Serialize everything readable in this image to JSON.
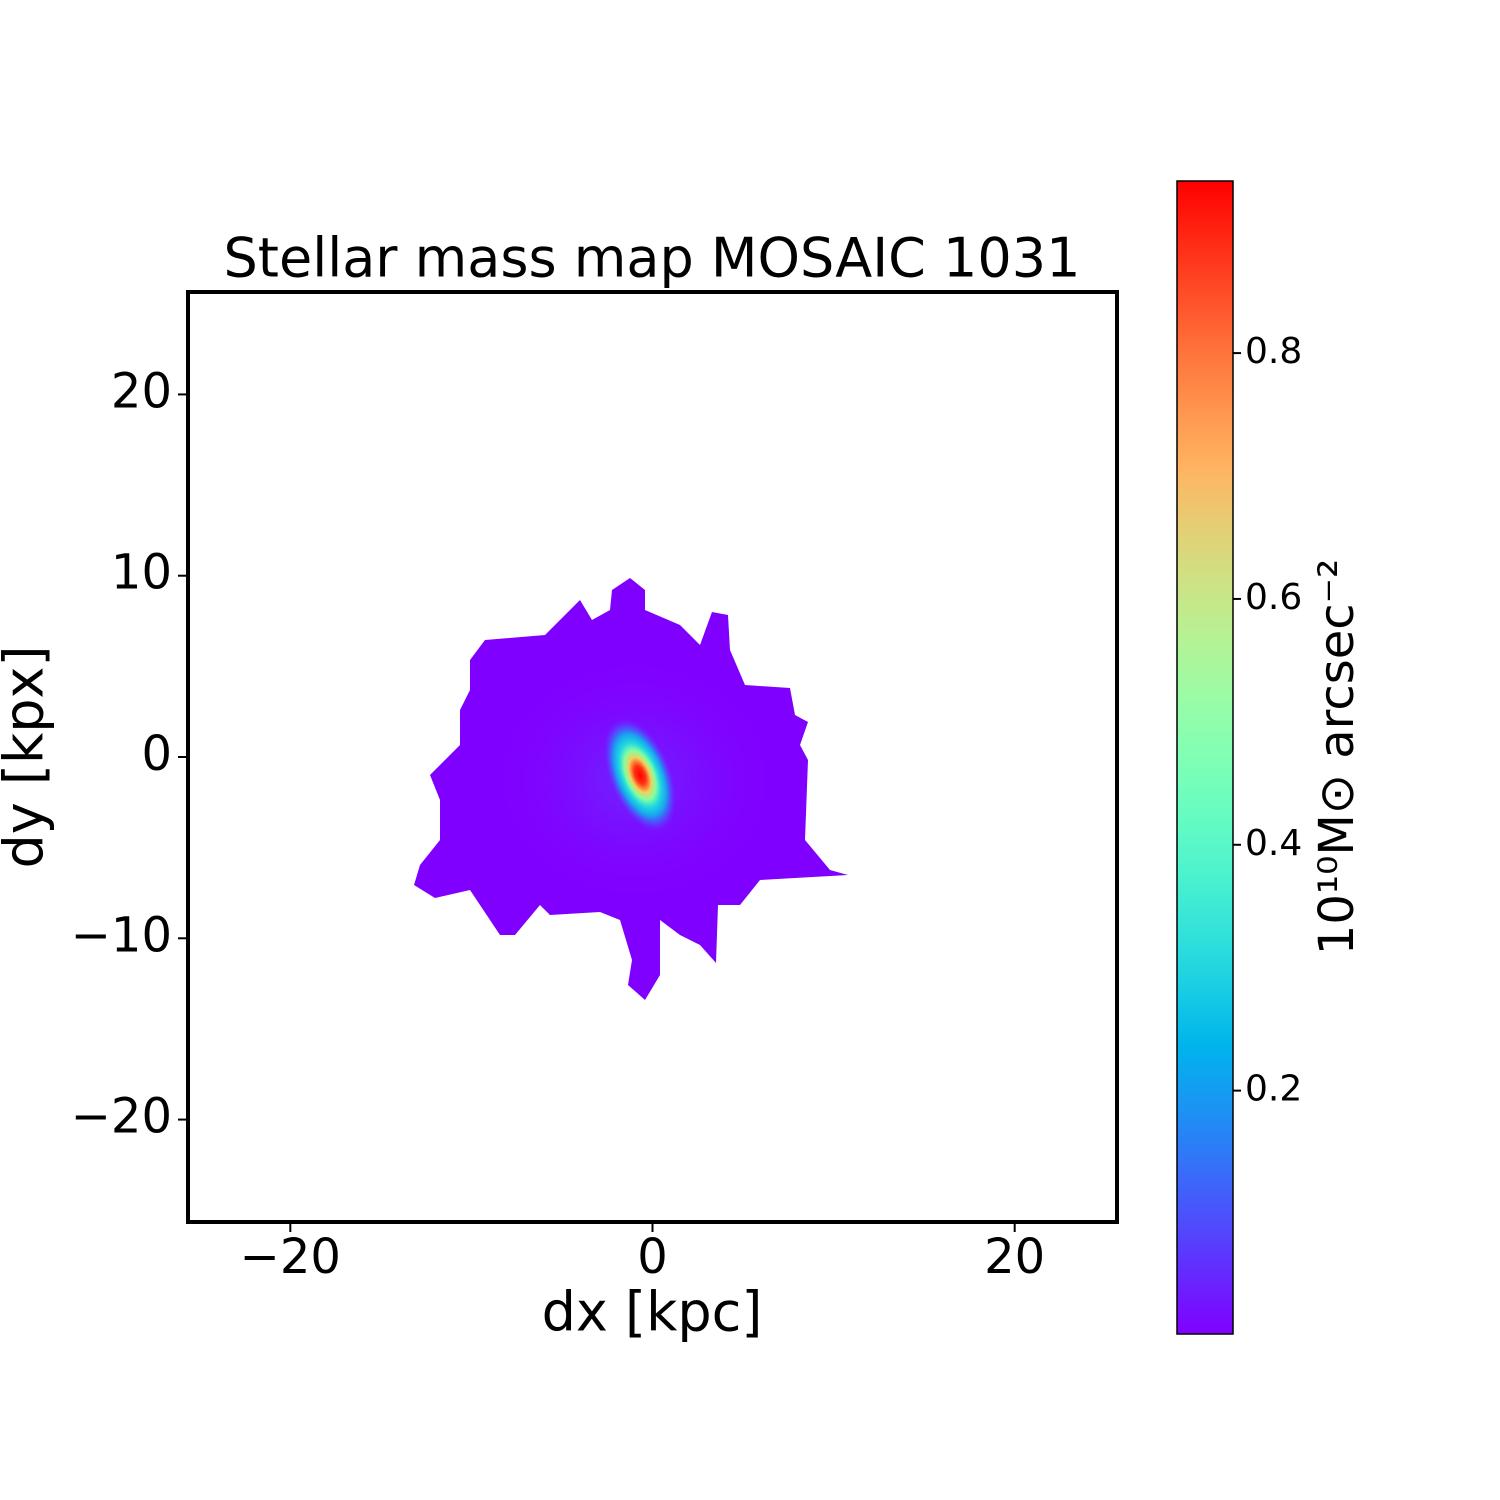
{
  "chart_data": {
    "type": "image",
    "title": "Stellar mass map MOSAIC 1031",
    "x_label": "dx [kpc]",
    "y_label": "dy [kpx]",
    "xlim": [
      -25.65,
      25.65
    ],
    "ylim": [
      -25.65,
      25.65
    ],
    "xticks": [
      {
        "value": -20,
        "label": "−20"
      },
      0,
      20
    ],
    "yticks": [
      {
        "value": -20,
        "label": "−20"
      },
      {
        "value": -10,
        "label": "−10"
      },
      0,
      10,
      20
    ],
    "colorbar": {
      "label": "10¹⁰M⊙ arcsec⁻²",
      "colormap": "rainbow",
      "clim": [
        0.002,
        0.94
      ],
      "ticks": [
        0.2,
        0.4,
        0.6,
        0.8
      ]
    }
  }
}
